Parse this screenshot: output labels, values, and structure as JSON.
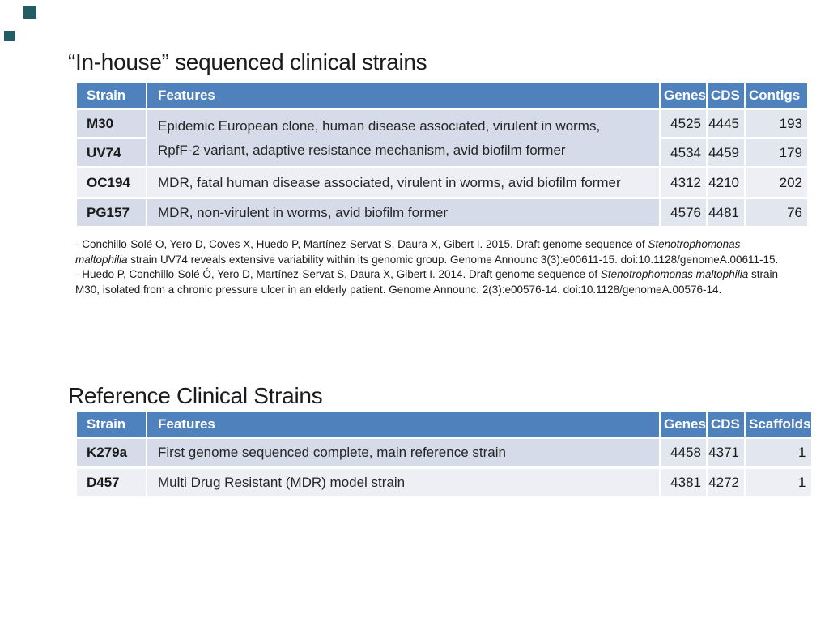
{
  "colors": {
    "header_blue": "#4f81bd",
    "band_dark": "#d5dbe8",
    "band_numeric": "#e1e6ef",
    "band_light": "#edeff5",
    "decor_teal": "#215d63",
    "text_dark": "#1f1f1f"
  },
  "section_inhouse": {
    "title": "“In-house” sequenced clinical strains",
    "table": {
      "headers": {
        "strain": "Strain",
        "features": "Features",
        "genes": "Genes",
        "cds": "CDS",
        "last": "Contigs"
      },
      "merged_features": {
        "line1": "Epidemic European clone, human disease associated, virulent in worms,",
        "line2": "RpfF-2 variant, adaptive resistance mechanism, avid biofilm former"
      },
      "rows": [
        {
          "strain": "M30",
          "genes": "4525",
          "cds": "4445",
          "last": "193"
        },
        {
          "strain": "UV74",
          "genes": "4534",
          "cds": "4459",
          "last": "179"
        },
        {
          "strain": "OC194",
          "features": "MDR, fatal human disease associated, virulent in worms, avid biofilm former",
          "genes": "4312",
          "cds": "4210",
          "last": "202"
        },
        {
          "strain": "PG157",
          "features": "MDR, non-virulent in worms, avid biofilm former",
          "genes": "4576",
          "cds": "4481",
          "last": "76"
        }
      ]
    }
  },
  "citations": {
    "lines": [
      [
        {
          "t": "- Conchillo-Solé O, Yero D, Coves X, Huedo P, Martínez-Servat S, Daura X, Gibert I. 2015. Draft genome sequence of "
        },
        {
          "t": "Stenotrophomonas",
          "i": true
        }
      ],
      [
        {
          "t": "maltophilia",
          "i": true
        },
        {
          "t": " strain UV74 reveals extensive variability within its genomic group. Genome Announc 3(3):e00611-15. doi:10.1128/genomeA.00611-15."
        }
      ],
      [
        {
          "t": "- Huedo P, Conchillo-Solé Ó, Yero D, Martínez-Servat S, Daura X, Gibert I. 2014. Draft genome sequence of "
        },
        {
          "t": "Stenotrophomonas maltophilia",
          "i": true
        },
        {
          "t": " strain"
        }
      ],
      [
        {
          "t": "M30, isolated from a chronic pressure ulcer in an elderly patient. Genome Announc. 2(3):e00576-14. doi:10.1128/genomeA.00576-14."
        }
      ]
    ]
  },
  "section_reference": {
    "title": "Reference Clinical Strains",
    "table": {
      "headers": {
        "strain": "Strain",
        "features": "Features",
        "genes": "Genes",
        "cds": "CDS",
        "last": "Scaffolds"
      },
      "rows": [
        {
          "strain": "K279a",
          "features": "First genome sequenced complete, main reference strain",
          "genes": "4458",
          "cds": "4371",
          "last": "1"
        },
        {
          "strain": "D457",
          "features": "Multi Drug Resistant (MDR) model strain",
          "genes": "4381",
          "cds": "4272",
          "last": "1"
        }
      ]
    }
  }
}
